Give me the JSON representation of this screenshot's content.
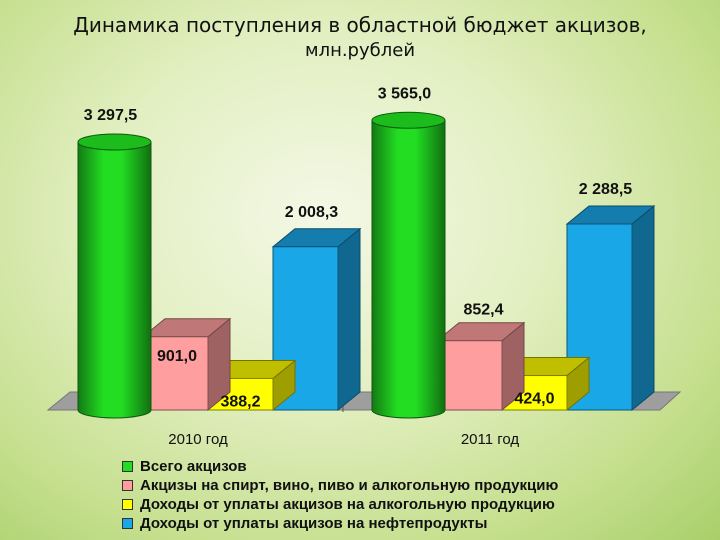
{
  "title_line1": "Динамика поступления в областной бюджет акцизов,",
  "title_line2": "млн.рублей",
  "chart_data": {
    "type": "bar",
    "title": "Динамика поступления в областной бюджет акцизов, млн.рублей",
    "categories": [
      "2010 год",
      "2011 год"
    ],
    "series": [
      {
        "name": "Всего акцизов",
        "values": [
          3297.5,
          3565.0
        ],
        "labels": [
          "3 297,5",
          "3 565,0"
        ],
        "color": "#22dd22"
      },
      {
        "name": "Акцизы на спирт, вино, пиво и алкогольную продукцию",
        "values": [
          901.0,
          852.4
        ],
        "labels": [
          "901,0",
          "852,4"
        ],
        "color": "#ff9e9e"
      },
      {
        "name": "Доходы от уплаты акцизов на алкогольную продукцию",
        "values": [
          388.2,
          424.0
        ],
        "labels": [
          "388,2",
          "424,0"
        ],
        "color": "#ffff00"
      },
      {
        "name": "Доходы от уплаты акцизов на нефтепродукты",
        "values": [
          2008.3,
          2288.5
        ],
        "labels": [
          "2 008,3",
          "2 288,5"
        ],
        "color": "#1aa7e8"
      }
    ],
    "legend_position": "bottom-left",
    "grid": false
  }
}
